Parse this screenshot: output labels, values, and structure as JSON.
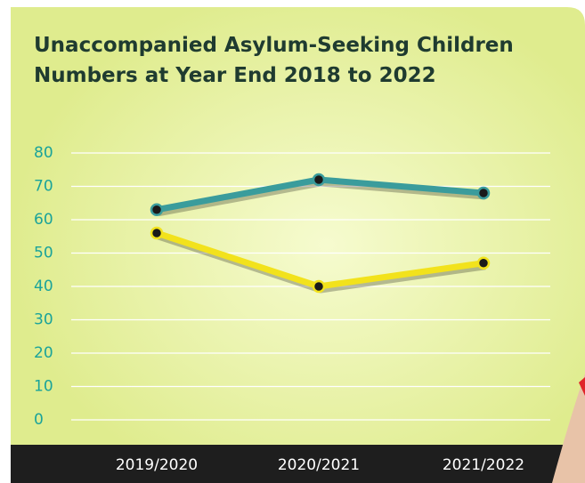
{
  "chart_data": {
    "type": "line",
    "title": "Unaccompanied Asylum-Seeking Children Numbers at Year End 2018 to 2022",
    "categories": [
      "2019/2020",
      "2020/2021",
      "2021/2022"
    ],
    "series": [
      {
        "color": "#3a9c9c",
        "values": [
          63,
          72,
          68
        ]
      },
      {
        "color": "#f2e21c",
        "values": [
          56,
          40,
          47
        ]
      }
    ],
    "ylim": [
      0,
      80
    ],
    "yticks": [
      0,
      10,
      20,
      30,
      40,
      50,
      60,
      70,
      80
    ],
    "grid": true
  }
}
